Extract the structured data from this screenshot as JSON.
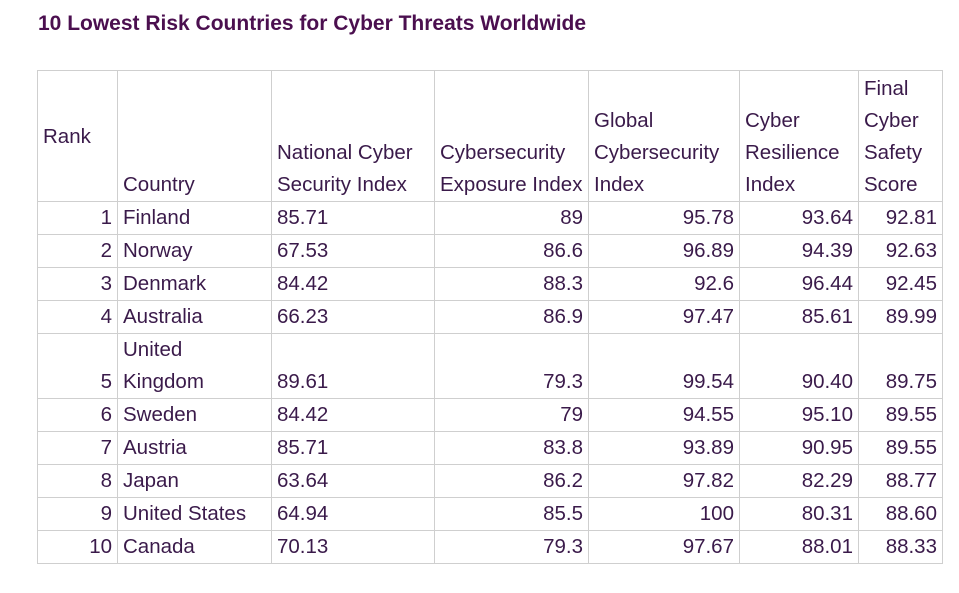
{
  "title": "10 Lowest Risk Countries for Cyber Threats Worldwide",
  "colors": {
    "title": "#4b0f4f",
    "text": "#3a1a4a",
    "grid": "#cfcfcf"
  },
  "chart_data": {
    "type": "table",
    "title": "10 Lowest Risk Countries for Cyber Threats Worldwide",
    "columns": [
      "Rank",
      "Country",
      "National Cyber Security Index",
      "Cybersecurity Exposure Index",
      "Global Cybersecurity Index",
      "Cyber Resilience Index",
      "Final Cyber Safety Score"
    ],
    "rows": [
      [
        "1",
        "Finland",
        "85.71",
        "89",
        "95.78",
        "93.64",
        "92.81"
      ],
      [
        "2",
        "Norway",
        "67.53",
        "86.6",
        "96.89",
        "94.39",
        "92.63"
      ],
      [
        "3",
        "Denmark",
        "84.42",
        "88.3",
        "92.6",
        "96.44",
        "92.45"
      ],
      [
        "4",
        "Australia",
        "66.23",
        "86.9",
        "97.47",
        "85.61",
        "89.99"
      ],
      [
        "5",
        "United Kingdom",
        "89.61",
        "79.3",
        "99.54",
        "90.40",
        "89.75"
      ],
      [
        "6",
        "Sweden",
        "84.42",
        "79",
        "94.55",
        "95.10",
        "89.55"
      ],
      [
        "7",
        "Austria",
        "85.71",
        "83.8",
        "93.89",
        "90.95",
        "89.55"
      ],
      [
        "8",
        "Japan",
        "63.64",
        "86.2",
        "97.82",
        "82.29",
        "88.77"
      ],
      [
        "9",
        "United States",
        "64.94",
        "85.5",
        "100",
        "80.31",
        "88.60"
      ],
      [
        "10",
        "Canada",
        "70.13",
        "79.3",
        "97.67",
        "88.01",
        "88.33"
      ]
    ]
  }
}
